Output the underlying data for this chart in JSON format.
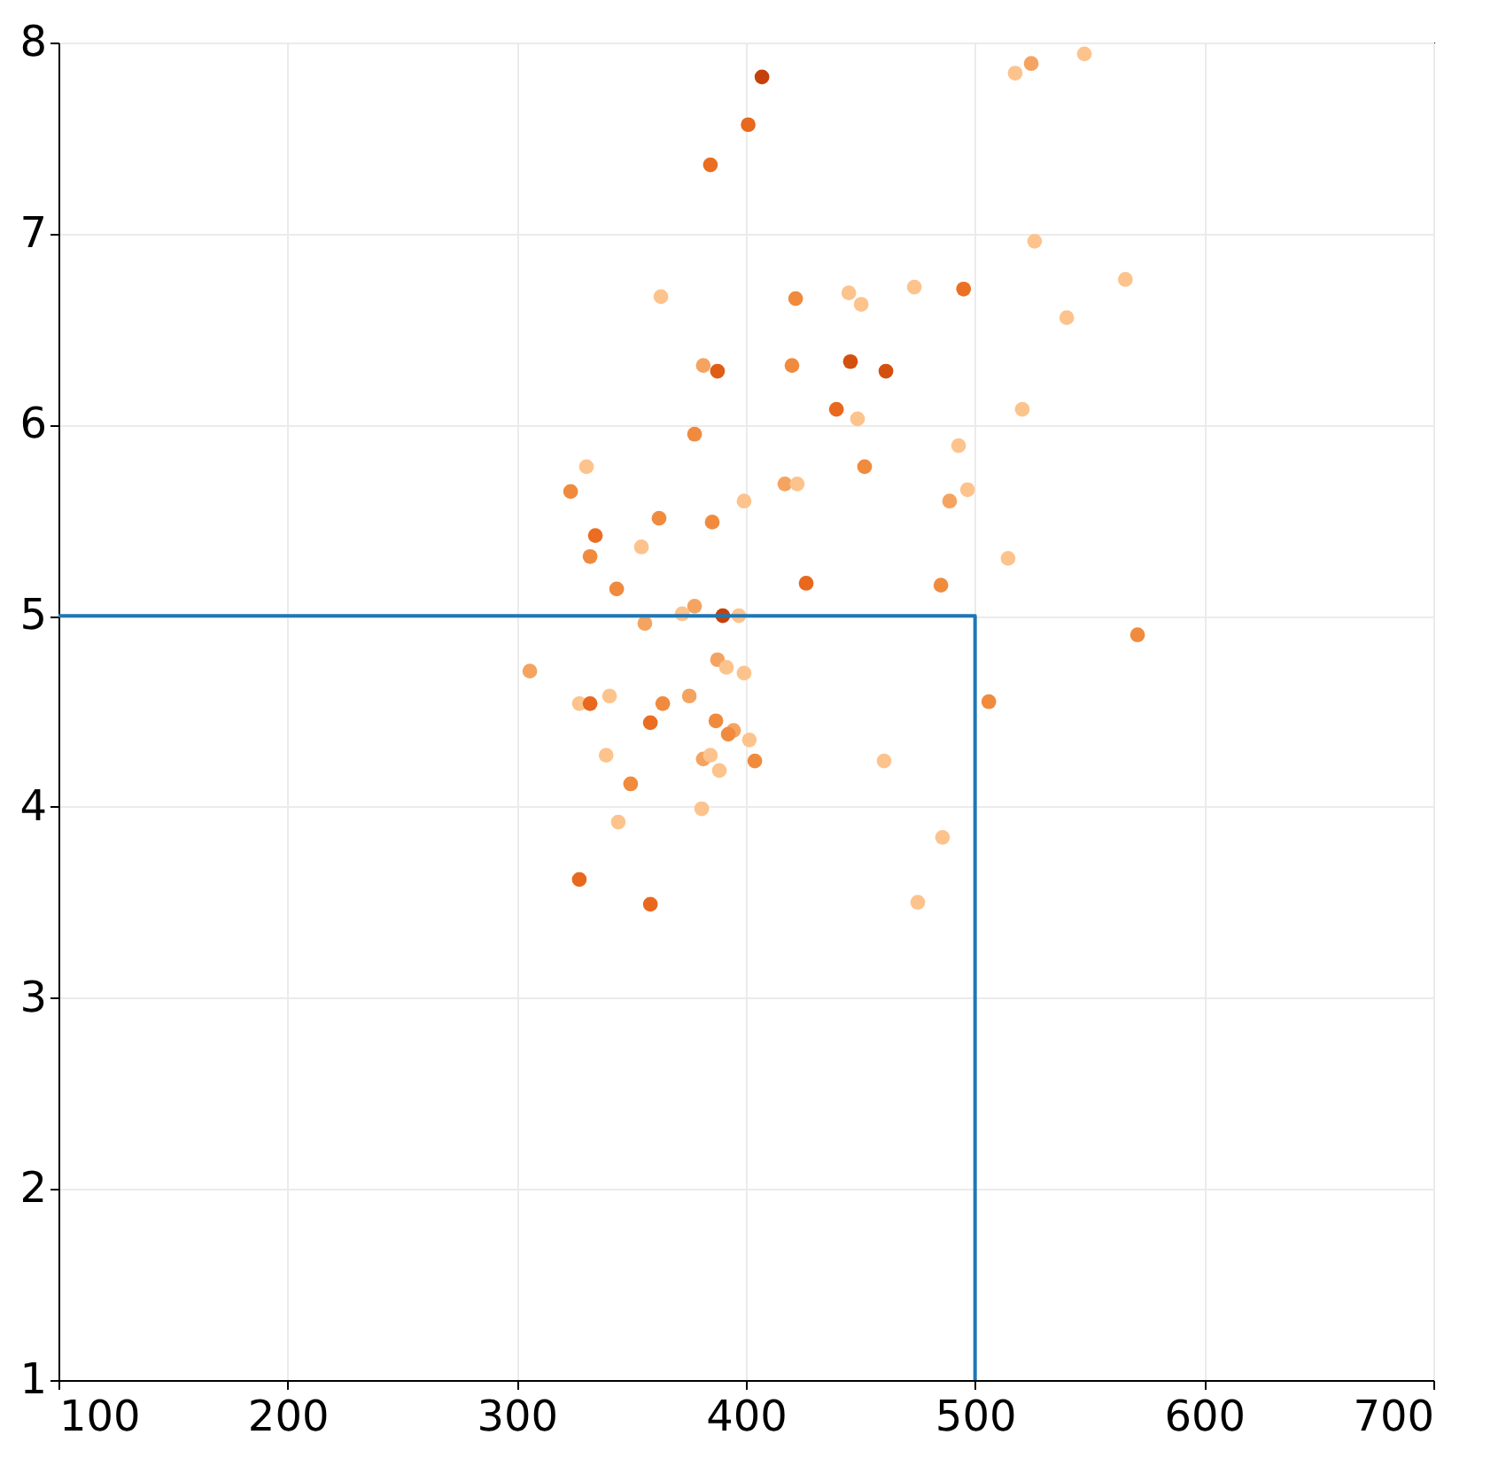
{
  "chart_data": {
    "type": "scatter",
    "xlim": [
      100,
      700
    ],
    "ylim": [
      1,
      8
    ],
    "xticks": [
      100,
      200,
      300,
      400,
      500,
      600,
      700
    ],
    "yticks": [
      1,
      2,
      3,
      4,
      5,
      6,
      7,
      8
    ],
    "grid": true,
    "series": [
      {
        "marker": "circle",
        "x": [
          407,
          401,
          384.5,
          524.5,
          517.5,
          547.7,
          526,
          565.6,
          473.5,
          495,
          444.9,
          421.7,
          450.3,
          362.9,
          540,
          445.6,
          461.1,
          387.6,
          381.4,
          420.1,
          439.5,
          448.7,
          520.6,
          377.6,
          492.8,
          330.4,
          451.8,
          323.5,
          417,
          422.4,
          496.7,
          488.9,
          399.2,
          362.1,
          385.3,
          334.3,
          354.4,
          332,
          514.4,
          426.3,
          485.1,
          343.6,
          377.6,
          372.2,
          389.9,
          396.9,
          355.9,
          570.9,
          305.7,
          387.6,
          391.5,
          399.2,
          327.3,
          332,
          340.5,
          363.7,
          375.3,
          506,
          358.3,
          386.9,
          394.6,
          392.3,
          401.5,
          339,
          381.4,
          384.5,
          403.9,
          460.3,
          388.4,
          349.7,
          344.3,
          380.7,
          485.8,
          327.3,
          475,
          358.3
        ],
        "values": [
          7.82,
          7.57,
          7.36,
          7.89,
          7.84,
          7.94,
          6.96,
          6.76,
          6.72,
          6.71,
          6.69,
          6.66,
          6.63,
          6.67,
          6.56,
          6.33,
          6.28,
          6.28,
          6.31,
          6.31,
          6.08,
          6.03,
          6.08,
          5.95,
          5.89,
          5.78,
          5.78,
          5.65,
          5.69,
          5.69,
          5.66,
          5.6,
          5.6,
          5.51,
          5.49,
          5.42,
          5.36,
          5.31,
          5.3,
          5.17,
          5.16,
          5.14,
          5.05,
          5.01,
          5,
          5,
          4.96,
          4.9,
          4.71,
          4.77,
          4.73,
          4.7,
          4.54,
          4.54,
          4.58,
          4.54,
          4.58,
          4.55,
          4.44,
          4.45,
          4.4,
          4.38,
          4.35,
          4.27,
          4.25,
          4.27,
          4.24,
          4.24,
          4.19,
          4.12,
          3.92,
          3.99,
          3.84,
          3.62,
          3.5,
          3.49
        ],
        "colors": [
          "#c4410a",
          "#e8681d",
          "#ea6d21",
          "#f4a460",
          "#fdc38d",
          "#fdc38d",
          "#fdc38d",
          "#fdc38d",
          "#fdc38d",
          "#eb7024",
          "#fdc38d",
          "#f08b3e",
          "#fdc38d",
          "#fdc38d",
          "#fdc38d",
          "#d4500f",
          "#d4500f",
          "#e05d15",
          "#f4a460",
          "#f08b3e",
          "#e8681d",
          "#fdc38d",
          "#fdc38d",
          "#f08b3e",
          "#fdc38d",
          "#fdc38d",
          "#f08b3e",
          "#f08b3e",
          "#f4a460",
          "#fdc38d",
          "#fdc38d",
          "#f4a460",
          "#fdc38d",
          "#f08b3e",
          "#f08b3e",
          "#ea6d21",
          "#fdc38d",
          "#f08b3e",
          "#fdc38d",
          "#e8681d",
          "#f08b3e",
          "#f08b3e",
          "#f4a460",
          "#fdc38d",
          "#c4410a",
          "#fdc38d",
          "#f4a460",
          "#f08b3e",
          "#f4a460",
          "#f4a460",
          "#fdc38d",
          "#fdc38d",
          "#fdc38d",
          "#e8681d",
          "#fdc38d",
          "#f08b3e",
          "#f4a460",
          "#f08b3e",
          "#ea6d21",
          "#f08b3e",
          "#f4a460",
          "#f08b3e",
          "#fdc38d",
          "#fdc38d",
          "#f4a460",
          "#fdc38d",
          "#f08b3e",
          "#fdc38d",
          "#fdc38d",
          "#f08b3e",
          "#fdc38d",
          "#fdc38d",
          "#fdc38d",
          "#e8681d",
          "#fdc38d",
          "#e8681d"
        ]
      },
      {
        "type": "line",
        "marker": "none",
        "x": [
          100,
          500,
          500
        ],
        "values": [
          5,
          5,
          1
        ],
        "color": "#1f77b4"
      }
    ]
  }
}
